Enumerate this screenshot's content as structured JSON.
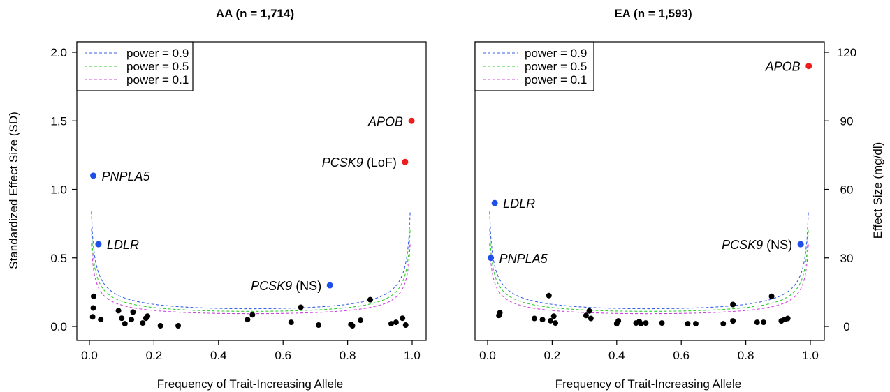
{
  "figure": {
    "shared_ylabel_left": "Standardized Effect Size (SD)",
    "shared_ylabel_right": "Effect Size (mg/dl)",
    "legend_entries": [
      {
        "label": "power = 0.9",
        "color": "#3a5fe6"
      },
      {
        "label": "power = 0.5",
        "color": "#2ecc2e"
      },
      {
        "label": "power = 0.1",
        "color": "#cc44dd"
      }
    ],
    "point_colors": {
      "black": "#000000",
      "blue": "#1f4fe8",
      "red": "#ee1c1c"
    }
  },
  "chart_data": [
    {
      "type": "scatter",
      "title": "AA (n = 1,714)",
      "xlabel": "Frequency of Trait-Increasing Allele",
      "ylabel": "Standardized Effect Size (SD)",
      "xlim": [
        0,
        1
      ],
      "ylim": [
        0,
        2
      ],
      "xticks": [
        "0.0",
        "0.2",
        "0.4",
        "0.6",
        "0.8",
        "1.0"
      ],
      "yticks": [
        "0.0",
        "0.5",
        "1.0",
        "1.5",
        "2.0"
      ],
      "legend_position": "top-left",
      "power_curves": [
        {
          "name": "power = 0.9",
          "k": 0.0915
        },
        {
          "name": "power = 0.5",
          "k": 0.078
        },
        {
          "name": "power = 0.1",
          "k": 0.066
        }
      ],
      "labeled_points": [
        {
          "name": "PNPLA5",
          "suffix": "",
          "x": 0.012,
          "y": 1.1,
          "color": "blue",
          "label_side": "right"
        },
        {
          "name": "LDLR",
          "suffix": "",
          "x": 0.028,
          "y": 0.6,
          "color": "blue",
          "label_side": "right"
        },
        {
          "name": "PCSK9",
          "suffix": " (NS)",
          "x": 0.745,
          "y": 0.3,
          "color": "blue",
          "label_side": "left"
        },
        {
          "name": "APOB",
          "suffix": "",
          "x": 0.998,
          "y": 1.5,
          "color": "red",
          "label_side": "left"
        },
        {
          "name": "PCSK9",
          "suffix": " (LoF)",
          "x": 0.978,
          "y": 1.2,
          "color": "red",
          "label_side": "left"
        }
      ],
      "points": [
        {
          "x": 0.01,
          "y": 0.07
        },
        {
          "x": 0.012,
          "y": 0.135
        },
        {
          "x": 0.013,
          "y": 0.22
        },
        {
          "x": 0.035,
          "y": 0.05
        },
        {
          "x": 0.09,
          "y": 0.115
        },
        {
          "x": 0.1,
          "y": 0.06
        },
        {
          "x": 0.11,
          "y": 0.02
        },
        {
          "x": 0.13,
          "y": 0.05
        },
        {
          "x": 0.135,
          "y": 0.105
        },
        {
          "x": 0.165,
          "y": 0.025
        },
        {
          "x": 0.175,
          "y": 0.06
        },
        {
          "x": 0.18,
          "y": 0.075
        },
        {
          "x": 0.22,
          "y": 0.005
        },
        {
          "x": 0.275,
          "y": 0.005
        },
        {
          "x": 0.49,
          "y": 0.05
        },
        {
          "x": 0.505,
          "y": 0.085
        },
        {
          "x": 0.625,
          "y": 0.03
        },
        {
          "x": 0.655,
          "y": 0.14
        },
        {
          "x": 0.71,
          "y": 0.01
        },
        {
          "x": 0.81,
          "y": 0.015
        },
        {
          "x": 0.815,
          "y": 0.005
        },
        {
          "x": 0.84,
          "y": 0.045
        },
        {
          "x": 0.87,
          "y": 0.195
        },
        {
          "x": 0.935,
          "y": 0.02
        },
        {
          "x": 0.95,
          "y": 0.03
        },
        {
          "x": 0.97,
          "y": 0.06
        },
        {
          "x": 0.98,
          "y": 0.01
        }
      ]
    },
    {
      "type": "scatter",
      "title": "EA (n = 1,593)",
      "xlabel": "Frequency of Trait-Increasing Allele",
      "ylabel": "Effect Size (mg/dl)",
      "xlim": [
        0,
        1
      ],
      "ylim": [
        0,
        120
      ],
      "xticks": [
        "0.0",
        "0.2",
        "0.4",
        "0.6",
        "0.8",
        "1.0"
      ],
      "yticks": [
        "0",
        "30",
        "60",
        "90",
        "120"
      ],
      "legend_position": "top-left",
      "power_curves": [
        {
          "name": "power = 0.9",
          "k": 0.0915
        },
        {
          "name": "power = 0.5",
          "k": 0.078
        },
        {
          "name": "power = 0.1",
          "k": 0.066
        }
      ],
      "labeled_points": [
        {
          "name": "APOB",
          "suffix": "",
          "x": 0.995,
          "y": 114,
          "color": "red",
          "label_side": "left"
        },
        {
          "name": "LDLR",
          "suffix": "",
          "x": 0.022,
          "y": 54,
          "color": "blue",
          "label_side": "right"
        },
        {
          "name": "PNPLA5",
          "suffix": "",
          "x": 0.01,
          "y": 30,
          "color": "blue",
          "label_side": "right"
        },
        {
          "name": "PCSK9",
          "suffix": " (NS)",
          "x": 0.97,
          "y": 36,
          "color": "blue",
          "label_side": "left"
        }
      ],
      "points": [
        {
          "x": 0.035,
          "y": 4.8
        },
        {
          "x": 0.038,
          "y": 6.0
        },
        {
          "x": 0.145,
          "y": 3.5
        },
        {
          "x": 0.17,
          "y": 3.0
        },
        {
          "x": 0.19,
          "y": 13.5
        },
        {
          "x": 0.195,
          "y": 2.5
        },
        {
          "x": 0.205,
          "y": 4.5
        },
        {
          "x": 0.21,
          "y": 1.5
        },
        {
          "x": 0.305,
          "y": 4.8
        },
        {
          "x": 0.315,
          "y": 6.8
        },
        {
          "x": 0.32,
          "y": 3.5
        },
        {
          "x": 0.4,
          "y": 1.2
        },
        {
          "x": 0.405,
          "y": 2.4
        },
        {
          "x": 0.46,
          "y": 1.5
        },
        {
          "x": 0.47,
          "y": 2.1
        },
        {
          "x": 0.475,
          "y": 1.2
        },
        {
          "x": 0.49,
          "y": 1.5
        },
        {
          "x": 0.54,
          "y": 1.5
        },
        {
          "x": 0.62,
          "y": 1.2
        },
        {
          "x": 0.645,
          "y": 1.2
        },
        {
          "x": 0.73,
          "y": 1.2
        },
        {
          "x": 0.76,
          "y": 2.4
        },
        {
          "x": 0.76,
          "y": 9.6
        },
        {
          "x": 0.835,
          "y": 1.8
        },
        {
          "x": 0.855,
          "y": 1.8
        },
        {
          "x": 0.88,
          "y": 13.2
        },
        {
          "x": 0.91,
          "y": 2.4
        },
        {
          "x": 0.92,
          "y": 3.0
        },
        {
          "x": 0.93,
          "y": 3.5
        }
      ]
    }
  ]
}
